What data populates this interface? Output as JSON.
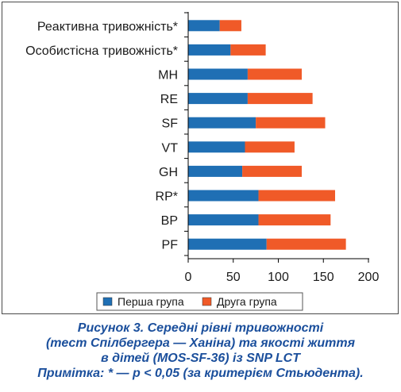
{
  "chart_data": {
    "type": "bar",
    "orientation": "horizontal",
    "stacked": true,
    "categories": [
      "Реактивна тривожність*",
      "Особистісна тривожність*",
      "MH",
      "RE",
      "SF",
      "VT",
      "GH",
      "RP*",
      "BP",
      "PF"
    ],
    "series": [
      {
        "name": "Перша група",
        "color": "#1f6fb4",
        "values": [
          35,
          47,
          66,
          66,
          75,
          63,
          60,
          78,
          78,
          87
        ]
      },
      {
        "name": "Друга група",
        "color": "#f05a28",
        "values": [
          24,
          39,
          60,
          72,
          77,
          55,
          66,
          85,
          80,
          88
        ]
      }
    ],
    "xlim": [
      0,
      200
    ],
    "xticks": [
      "0",
      "50",
      "100",
      "150",
      "200"
    ],
    "legend_position": "bottom",
    "grid": false
  },
  "caption": {
    "line1": "Рисунок 3. Середні рівні тривожності",
    "line2": "(тест Спілбергера — Ханіна) та якості життя",
    "line3": "в дітей (MOS-SF-36) із SNP LCT",
    "note": "Примітка: * — p < 0,05 (за критерієм Стьюдента)."
  }
}
